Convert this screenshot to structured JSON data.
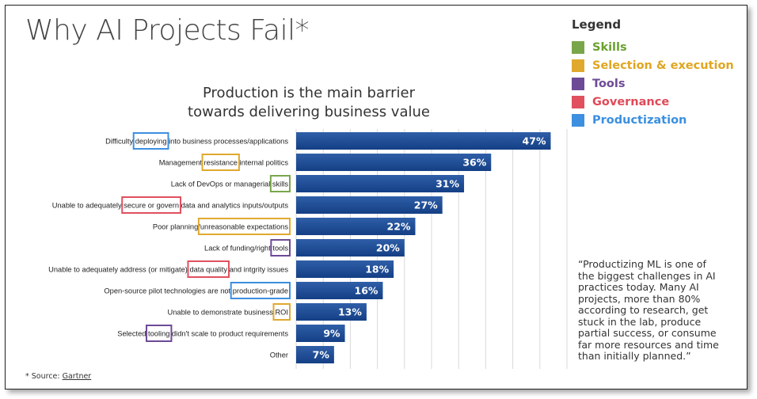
{
  "title": "Why AI Projects Fail*",
  "chart_data": {
    "type": "bar",
    "orientation": "horizontal",
    "title": "Production is the main barrier towards delivering business value",
    "title_lines": [
      "Production is the main barrier",
      "towards delivering business value"
    ],
    "xlim": [
      0,
      50
    ],
    "grid": true,
    "legend_placement": "top-right",
    "categories": [
      [
        {
          "t": "Difficulty "
        },
        {
          "t": "deploying",
          "tag": "Productization"
        },
        {
          "t": " into business processes/applications"
        }
      ],
      [
        {
          "t": "Management "
        },
        {
          "t": "resistance",
          "tag": "Selection & execution"
        },
        {
          "t": " internal politics"
        }
      ],
      [
        {
          "t": "Lack of DevOps or managerial "
        },
        {
          "t": "skills",
          "tag": "Skills"
        }
      ],
      [
        {
          "t": "Unable to adequately "
        },
        {
          "t": "secure or govern",
          "tag": "Governance"
        },
        {
          "t": " data and analytics inputs/outputs"
        }
      ],
      [
        {
          "t": "Poor planning/"
        },
        {
          "t": "unreasonable expectations",
          "tag": "Selection & execution"
        }
      ],
      [
        {
          "t": "Lack of funding/right "
        },
        {
          "t": "tools",
          "tag": "Tools"
        }
      ],
      [
        {
          "t": "Unable to adequately address (or mitigate) "
        },
        {
          "t": "data quality",
          "tag": "Governance"
        },
        {
          "t": " and intgrity issues"
        }
      ],
      [
        {
          "t": "Open-source pilot technologies are not "
        },
        {
          "t": "production-grade",
          "tag": "Productization"
        }
      ],
      [
        {
          "t": "Unable to demonstrate business "
        },
        {
          "t": "ROI",
          "tag": "Selection & execution"
        }
      ],
      [
        {
          "t": "Selected "
        },
        {
          "t": "tooling",
          "tag": "Tools"
        },
        {
          "t": " didn't scale to product requirements"
        }
      ],
      [
        {
          "t": "Other"
        }
      ]
    ],
    "values": [
      47,
      36,
      31,
      27,
      22,
      20,
      18,
      16,
      13,
      9,
      7
    ],
    "value_labels": [
      "47%",
      "36%",
      "31%",
      "27%",
      "22%",
      "20%",
      "18%",
      "16%",
      "13%",
      "9%",
      "7%"
    ],
    "bar_color_top": "#2f5fa8",
    "bar_color_bottom": "#143f85"
  },
  "legend": {
    "title": "Legend",
    "items": [
      {
        "label": "Skills",
        "color": "#7aa64a",
        "text_color": "#6aa02e"
      },
      {
        "label": "Selection & execution",
        "color": "#e0a92e",
        "text_color": "#e0a520"
      },
      {
        "label": "Tools",
        "color": "#6d4a96",
        "text_color": "#6d4a96"
      },
      {
        "label": "Governance",
        "color": "#e0505f",
        "text_color": "#e04a58"
      },
      {
        "label": "Productization",
        "color": "#3d8fe0",
        "text_color": "#3a8fe0"
      }
    ]
  },
  "quote": "“Productizing ML is one of the biggest challenges in AI practices today. Many AI projects, more than 80% according to research, get stuck in the lab, produce partial success, or consume far more resources and time than initially planned.”",
  "source": {
    "prefix": "* Source: ",
    "link": "Gartner"
  }
}
